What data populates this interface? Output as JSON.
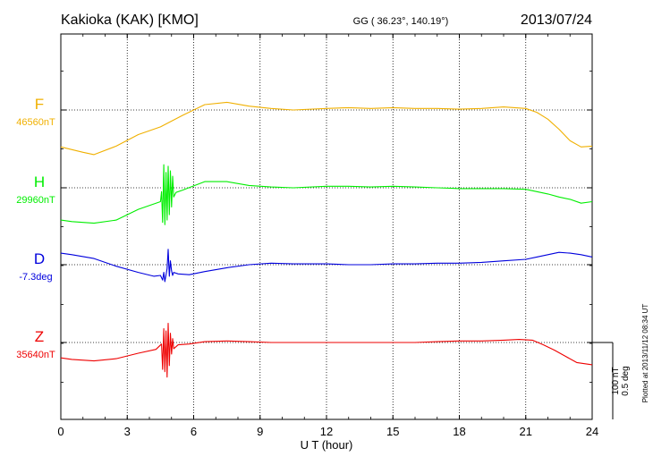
{
  "chart_data": {
    "type": "line",
    "title": "Kakioka (KAK)  [KMO]",
    "coordinates": "GG ( 36.23°, 140.19°)",
    "date": "2013/07/24",
    "xlabel": "U T (hour)",
    "xlim": [
      0,
      24
    ],
    "xticks": [
      "0",
      "3",
      "6",
      "9",
      "12",
      "15",
      "18",
      "21",
      "24"
    ],
    "grid": true,
    "scale_labels": [
      "100 nT",
      "0.5 deg"
    ],
    "plotted_note": "Plotted at 2013/11/12 08:34 UT",
    "channel_unit_scale": "offset from baseline, nT (D in 0.005 deg per nT-equivalent)",
    "series": [
      {
        "name": "F",
        "baseline_label": "46560nT",
        "color": "#f0b000",
        "points": [
          [
            0,
            -48
          ],
          [
            1,
            -55
          ],
          [
            1.5,
            -58
          ],
          [
            2.5,
            -47
          ],
          [
            3.5,
            -32
          ],
          [
            4.5,
            -22
          ],
          [
            5.5,
            -7
          ],
          [
            6.5,
            7
          ],
          [
            7.5,
            10
          ],
          [
            8.5,
            5
          ],
          [
            9.5,
            2
          ],
          [
            10.5,
            0
          ],
          [
            12,
            2
          ],
          [
            13,
            3
          ],
          [
            14,
            2
          ],
          [
            15,
            3
          ],
          [
            16,
            2
          ],
          [
            17,
            2
          ],
          [
            18,
            1
          ],
          [
            19,
            2
          ],
          [
            20,
            4
          ],
          [
            21,
            2
          ],
          [
            21.5,
            -3
          ],
          [
            22,
            -12
          ],
          [
            22.5,
            -25
          ],
          [
            23,
            -40
          ],
          [
            23.5,
            -48
          ],
          [
            24,
            -47
          ]
        ]
      },
      {
        "name": "H",
        "baseline_label": "29960nT",
        "color": "#00ee00",
        "points": [
          [
            0,
            -42
          ],
          [
            0.5,
            -44
          ],
          [
            1.5,
            -46
          ],
          [
            2.5,
            -42
          ],
          [
            3.5,
            -28
          ],
          [
            4.5,
            -18
          ],
          [
            4.55,
            -5
          ],
          [
            4.6,
            -45
          ],
          [
            4.65,
            30
          ],
          [
            4.7,
            -48
          ],
          [
            4.75,
            20
          ],
          [
            4.8,
            -42
          ],
          [
            4.85,
            28
          ],
          [
            4.9,
            -35
          ],
          [
            4.95,
            22
          ],
          [
            5.0,
            -25
          ],
          [
            5.05,
            15
          ],
          [
            5.1,
            -12
          ],
          [
            5.2,
            -6
          ],
          [
            5.5,
            -3
          ],
          [
            6.5,
            8
          ],
          [
            7.5,
            8
          ],
          [
            8.5,
            3
          ],
          [
            9.5,
            1
          ],
          [
            10.5,
            0
          ],
          [
            12,
            2
          ],
          [
            13,
            2
          ],
          [
            14,
            1
          ],
          [
            15,
            2
          ],
          [
            16,
            1
          ],
          [
            17,
            0
          ],
          [
            18,
            -1
          ],
          [
            19,
            -1
          ],
          [
            20,
            -1
          ],
          [
            21,
            -2
          ],
          [
            22,
            -8
          ],
          [
            22.5,
            -12
          ],
          [
            23,
            -15
          ],
          [
            23.5,
            -20
          ],
          [
            24,
            -18
          ]
        ]
      },
      {
        "name": "D",
        "baseline_label": "-7.3deg",
        "color": "#0000dd",
        "points": [
          [
            0,
            15
          ],
          [
            0.5,
            13
          ],
          [
            1.5,
            8
          ],
          [
            2.5,
            -2
          ],
          [
            3.5,
            -10
          ],
          [
            4.2,
            -15
          ],
          [
            4.5,
            -14
          ],
          [
            4.6,
            -20
          ],
          [
            4.65,
            -10
          ],
          [
            4.7,
            -22
          ],
          [
            4.8,
            -5
          ],
          [
            4.85,
            20
          ],
          [
            4.9,
            -15
          ],
          [
            4.95,
            5
          ],
          [
            5.0,
            -8
          ],
          [
            5.05,
            -14
          ],
          [
            5.1,
            -10
          ],
          [
            5.3,
            -12
          ],
          [
            5.8,
            -13
          ],
          [
            6.5,
            -9
          ],
          [
            7.5,
            -4
          ],
          [
            8.5,
            0
          ],
          [
            9.5,
            2
          ],
          [
            10.5,
            1
          ],
          [
            12,
            1
          ],
          [
            13,
            0
          ],
          [
            14,
            0
          ],
          [
            15,
            1
          ],
          [
            16,
            1
          ],
          [
            17,
            2
          ],
          [
            18,
            2
          ],
          [
            19,
            3
          ],
          [
            20,
            5
          ],
          [
            21,
            7
          ],
          [
            21.5,
            10
          ],
          [
            22,
            13
          ],
          [
            22.5,
            16
          ],
          [
            23,
            15
          ],
          [
            23.5,
            13
          ],
          [
            24,
            10
          ]
        ]
      },
      {
        "name": "Z",
        "baseline_label": "35640nT",
        "color": "#ee0000",
        "points": [
          [
            0,
            -20
          ],
          [
            0.5,
            -22
          ],
          [
            1.5,
            -24
          ],
          [
            2.5,
            -21
          ],
          [
            3.5,
            -14
          ],
          [
            4.3,
            -9
          ],
          [
            4.55,
            -2
          ],
          [
            4.6,
            -35
          ],
          [
            4.65,
            18
          ],
          [
            4.7,
            -38
          ],
          [
            4.75,
            15
          ],
          [
            4.8,
            -45
          ],
          [
            4.85,
            25
          ],
          [
            4.9,
            -30
          ],
          [
            4.95,
            12
          ],
          [
            5.0,
            -15
          ],
          [
            5.05,
            5
          ],
          [
            5.1,
            -8
          ],
          [
            5.3,
            -3
          ],
          [
            5.8,
            -2
          ],
          [
            6.5,
            1
          ],
          [
            7.5,
            2
          ],
          [
            8.5,
            1
          ],
          [
            9.5,
            0
          ],
          [
            10.5,
            0
          ],
          [
            12,
            0
          ],
          [
            13,
            0
          ],
          [
            14,
            0
          ],
          [
            15,
            0
          ],
          [
            16,
            0
          ],
          [
            17,
            1
          ],
          [
            18,
            2
          ],
          [
            19,
            2
          ],
          [
            20,
            3
          ],
          [
            20.7,
            4
          ],
          [
            21.3,
            3
          ],
          [
            21.8,
            -3
          ],
          [
            22.3,
            -10
          ],
          [
            22.8,
            -18
          ],
          [
            23.3,
            -26
          ],
          [
            24,
            -29
          ]
        ]
      }
    ]
  }
}
